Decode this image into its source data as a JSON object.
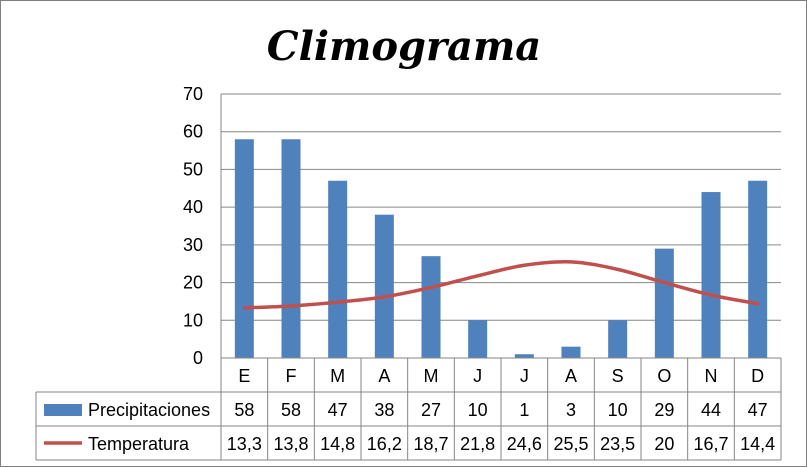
{
  "chart_data": {
    "type": "bar",
    "title": "Climograma",
    "categories": [
      "E",
      "F",
      "M",
      "A",
      "M",
      "J",
      "J",
      "A",
      "S",
      "O",
      "N",
      "D"
    ],
    "series": [
      {
        "name": "Precipitaciones",
        "type": "bar",
        "color": "#4f81bd",
        "values": [
          58,
          58,
          47,
          38,
          27,
          10,
          1,
          3,
          10,
          29,
          44,
          47
        ],
        "labels": [
          "58",
          "58",
          "47",
          "38",
          "27",
          "10",
          "1",
          "3",
          "10",
          "29",
          "44",
          "47"
        ]
      },
      {
        "name": "Temperatura",
        "type": "line",
        "color": "#c0504d",
        "values": [
          13.3,
          13.8,
          14.8,
          16.2,
          18.7,
          21.8,
          24.6,
          25.5,
          23.5,
          20,
          16.7,
          14.4
        ],
        "labels": [
          "13,3",
          "13,8",
          "14,8",
          "16,2",
          "18,7",
          "21,8",
          "24,6",
          "25,5",
          "23,5",
          "20",
          "16,7",
          "14,4"
        ]
      }
    ],
    "ylim": [
      0,
      70
    ],
    "yticks": [
      "0",
      "10",
      "20",
      "30",
      "40",
      "50",
      "60",
      "70"
    ],
    "grid": true,
    "legend": "data-table"
  }
}
